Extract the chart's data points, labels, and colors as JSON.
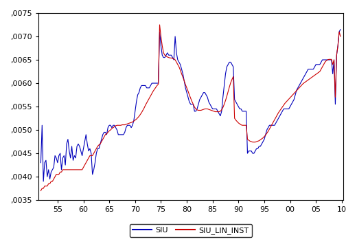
{
  "title": "",
  "xlabel": "",
  "ylabel": "",
  "ylim": [
    0.0035,
    0.0075
  ],
  "yticks": [
    0.0035,
    0.004,
    0.0045,
    0.005,
    0.0055,
    0.006,
    0.0065,
    0.007,
    0.0075
  ],
  "xtick_labels": [
    "55",
    "60",
    "65",
    "70",
    "75",
    "80",
    "85",
    "90",
    "95",
    "00",
    "05",
    "10"
  ],
  "xtick_positions": [
    13,
    33,
    53,
    73,
    93,
    113,
    133,
    153,
    173,
    193,
    213,
    233
  ],
  "legend_labels": [
    "SIU",
    "SIU_LIN_INST"
  ],
  "siu_color": "#0000bb",
  "inst_color": "#cc0000",
  "line_width": 0.8,
  "siu": [
    0.0043,
    0.0051,
    0.0039,
    0.0043,
    0.00435,
    0.004,
    0.00415,
    0.00395,
    0.0041,
    0.00415,
    0.0042,
    0.00445,
    0.0044,
    0.0043,
    0.00445,
    0.0045,
    0.00415,
    0.0044,
    0.00445,
    0.00425,
    0.0047,
    0.0048,
    0.00455,
    0.0044,
    0.00465,
    0.00435,
    0.00445,
    0.0044,
    0.00465,
    0.0047,
    0.00465,
    0.00455,
    0.00445,
    0.0046,
    0.00475,
    0.0049,
    0.0047,
    0.00455,
    0.0046,
    0.0045,
    0.00405,
    0.00415,
    0.0043,
    0.0045,
    0.0046,
    0.0046,
    0.0047,
    0.0048,
    0.0049,
    0.00495,
    0.00495,
    0.0049,
    0.00505,
    0.0051,
    0.0051,
    0.00505,
    0.0051,
    0.0051,
    0.00505,
    0.005,
    0.0049,
    0.0049,
    0.0049,
    0.0049,
    0.0049,
    0.00495,
    0.00505,
    0.0051,
    0.0051,
    0.0051,
    0.00505,
    0.0051,
    0.0052,
    0.0054,
    0.0056,
    0.00575,
    0.0058,
    0.0059,
    0.00595,
    0.00595,
    0.00595,
    0.00595,
    0.0059,
    0.0059,
    0.0059,
    0.00595,
    0.006,
    0.006,
    0.006,
    0.006,
    0.006,
    0.006,
    0.0071,
    0.0068,
    0.0066,
    0.00655,
    0.00655,
    0.0066,
    0.00665,
    0.0066,
    0.0066,
    0.0066,
    0.00655,
    0.0065,
    0.007,
    0.00665,
    0.0065,
    0.00645,
    0.0064,
    0.0063,
    0.0062,
    0.00605,
    0.0059,
    0.0058,
    0.0057,
    0.0056,
    0.00555,
    0.00555,
    0.00555,
    0.0054,
    0.0054,
    0.00545,
    0.00555,
    0.00565,
    0.0057,
    0.00575,
    0.0058,
    0.0058,
    0.00575,
    0.0057,
    0.0056,
    0.00555,
    0.0055,
    0.00545,
    0.00545,
    0.00545,
    0.00545,
    0.0054,
    0.00535,
    0.0053,
    0.0054,
    0.0057,
    0.00595,
    0.0062,
    0.00635,
    0.0064,
    0.00645,
    0.00645,
    0.0064,
    0.00635,
    0.00565,
    0.0056,
    0.00555,
    0.0055,
    0.00545,
    0.00545,
    0.0054,
    0.0054,
    0.0054,
    0.0054,
    0.0045,
    0.00455,
    0.00455,
    0.00455,
    0.0045,
    0.0045,
    0.00455,
    0.0046,
    0.0046,
    0.00465,
    0.00465,
    0.0047,
    0.00475,
    0.0048,
    0.0049,
    0.005,
    0.00505,
    0.0051,
    0.0051,
    0.0051,
    0.0051,
    0.0051,
    0.00515,
    0.0052,
    0.00525,
    0.0053,
    0.00535,
    0.0054,
    0.00545,
    0.00545,
    0.00545,
    0.00545,
    0.00545,
    0.0055,
    0.00555,
    0.0056,
    0.00565,
    0.00575,
    0.00585,
    0.0059,
    0.00595,
    0.006,
    0.00605,
    0.0061,
    0.00615,
    0.0062,
    0.00625,
    0.0063,
    0.0063,
    0.0063,
    0.0063,
    0.0063,
    0.00635,
    0.0064,
    0.0064,
    0.0064,
    0.0064,
    0.00645,
    0.0065,
    0.0065,
    0.0065,
    0.0065,
    0.0065,
    0.0065,
    0.0065,
    0.0065,
    0.0062,
    0.0065,
    0.00555,
    0.0066,
    0.0068,
    0.0071,
    0.00715
  ],
  "inst": [
    0.0037,
    0.00375,
    0.00375,
    0.0038,
    0.0038,
    0.0038,
    0.00385,
    0.00385,
    0.0039,
    0.0039,
    0.00395,
    0.004,
    0.00405,
    0.00405,
    0.00405,
    0.0041,
    0.0041,
    0.00415,
    0.00415,
    0.00415,
    0.00415,
    0.00415,
    0.00415,
    0.00415,
    0.00415,
    0.00415,
    0.00415,
    0.00415,
    0.00415,
    0.00415,
    0.00415,
    0.00415,
    0.00415,
    0.0042,
    0.00425,
    0.0043,
    0.00435,
    0.0044,
    0.00445,
    0.00445,
    0.00445,
    0.0045,
    0.00455,
    0.0046,
    0.00465,
    0.00468,
    0.0047,
    0.00475,
    0.0048,
    0.00485,
    0.0049,
    0.00492,
    0.00495,
    0.00498,
    0.005,
    0.00503,
    0.00505,
    0.00507,
    0.00509,
    0.0051,
    0.0051,
    0.0051,
    0.0051,
    0.00511,
    0.00511,
    0.00511,
    0.00512,
    0.00513,
    0.00514,
    0.00515,
    0.00516,
    0.00517,
    0.00519,
    0.00521,
    0.00523,
    0.00526,
    0.00529,
    0.00533,
    0.00537,
    0.00542,
    0.00547,
    0.00553,
    0.00558,
    0.00563,
    0.00568,
    0.00573,
    0.00578,
    0.00583,
    0.00587,
    0.00591,
    0.00595,
    0.00598,
    0.00725,
    0.007,
    0.0068,
    0.00665,
    0.0066,
    0.00658,
    0.00656,
    0.00655,
    0.00654,
    0.00654,
    0.00653,
    0.00652,
    0.0065,
    0.00645,
    0.0064,
    0.00635,
    0.00628,
    0.0062,
    0.00613,
    0.00605,
    0.00597,
    0.0059,
    0.00583,
    0.00575,
    0.00568,
    0.00561,
    0.00555,
    0.00549,
    0.00545,
    0.00543,
    0.00542,
    0.00542,
    0.00542,
    0.00543,
    0.00544,
    0.00545,
    0.00545,
    0.00545,
    0.00544,
    0.00543,
    0.00542,
    0.00541,
    0.0054,
    0.00539,
    0.00539,
    0.00539,
    0.00539,
    0.0054,
    0.00543,
    0.00548,
    0.00555,
    0.00563,
    0.00572,
    0.00582,
    0.00592,
    0.00601,
    0.00608,
    0.00614,
    0.00525,
    0.00521,
    0.00518,
    0.00515,
    0.00513,
    0.00511,
    0.0051,
    0.0051,
    0.0051,
    0.0051,
    0.0048,
    0.00478,
    0.00476,
    0.00475,
    0.00474,
    0.00474,
    0.00474,
    0.00475,
    0.00476,
    0.00477,
    0.00479,
    0.00481,
    0.00483,
    0.00486,
    0.00489,
    0.00493,
    0.00497,
    0.00502,
    0.00507,
    0.00512,
    0.00517,
    0.00522,
    0.00527,
    0.00532,
    0.00537,
    0.00541,
    0.00545,
    0.00549,
    0.00553,
    0.00557,
    0.0056,
    0.00563,
    0.00566,
    0.00569,
    0.00572,
    0.00575,
    0.00578,
    0.00581,
    0.00584,
    0.00587,
    0.0059,
    0.00593,
    0.00596,
    0.00599,
    0.00601,
    0.00603,
    0.00605,
    0.00607,
    0.00609,
    0.00611,
    0.00613,
    0.00615,
    0.00617,
    0.00619,
    0.00621,
    0.00623,
    0.00625,
    0.0063,
    0.00635,
    0.0064,
    0.00645,
    0.00648,
    0.0065,
    0.00651,
    0.00651,
    0.00651,
    0.0064,
    0.0065,
    0.0057,
    0.0066,
    0.0068,
    0.0071,
    0.007
  ]
}
